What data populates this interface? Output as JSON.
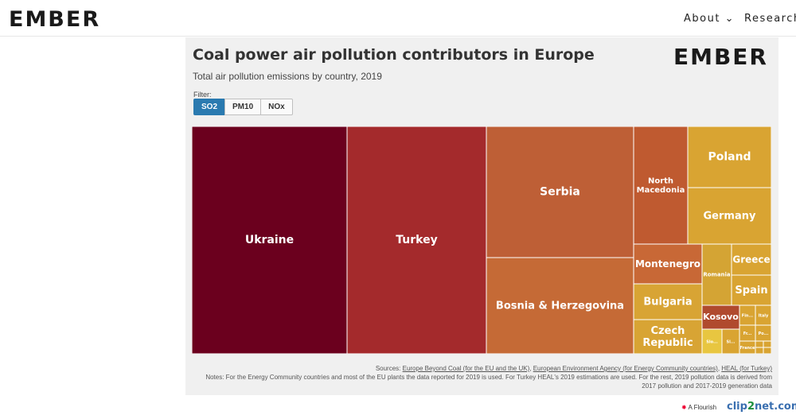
{
  "header": {
    "logo": "EMBER",
    "nav": [
      {
        "label": "About ⌄"
      },
      {
        "label": "Research"
      }
    ]
  },
  "card": {
    "logo": "EMBER",
    "filter_label": "Filter:",
    "filters": [
      "SO2",
      "PM10",
      "NOx"
    ],
    "active_filter": "SO2"
  },
  "chart_data": {
    "type": "treemap",
    "title": "Coal power air pollution contributors in Europe",
    "subtitle": "Total air pollution emissions by country, 2019",
    "nodes": [
      {
        "label": "Ukraine",
        "value": 195,
        "color": "#6b001e"
      },
      {
        "label": "Turkey",
        "value": 175,
        "color": "#a42a2c"
      },
      {
        "label": "Serbia",
        "value": 103,
        "color": "#be5f36"
      },
      {
        "label": "Bosnia & Herzegovina",
        "value": 83,
        "color": "#c56a36"
      },
      {
        "label": "North Macedonia",
        "value": 29,
        "color": "#bf5a30"
      },
      {
        "label": "Poland",
        "value": 28,
        "color": "#d9a432"
      },
      {
        "label": "Germany",
        "value": 26,
        "color": "#d9a432"
      },
      {
        "label": "Montenegro",
        "value": 12,
        "color": "#c86836"
      },
      {
        "label": "Romania",
        "value": 15,
        "color": "#d4a434"
      },
      {
        "label": "Greece",
        "value": 8,
        "color": "#d9a432"
      },
      {
        "label": "Spain",
        "value": 7.5,
        "color": "#d9a432"
      },
      {
        "label": "Bulgaria",
        "value": 13,
        "color": "#d8a434"
      },
      {
        "label": "Czech Republic",
        "value": 13,
        "color": "#d8a434"
      },
      {
        "label": "Kosovo",
        "value": 5,
        "color": "#b04a2e"
      },
      {
        "label": "Slo...",
        "value": 2.5,
        "color": "#e8c640"
      },
      {
        "label": "Sl...",
        "value": 2,
        "color": "#d9a432"
      },
      {
        "label": "Fin...",
        "value": 1.2,
        "color": "#d9a432"
      },
      {
        "label": "Italy",
        "value": 1.2,
        "color": "#d9a432"
      },
      {
        "label": "Fr...",
        "value": 1,
        "color": "#d9a432"
      },
      {
        "label": "Po...",
        "value": 1,
        "color": "#d9a432"
      },
      {
        "label": "France",
        "value": 0.8,
        "color": "#d9a432"
      },
      {
        "label": "",
        "value": 0.3,
        "color": "#d9a432"
      },
      {
        "label": "",
        "value": 0.3,
        "color": "#d9a432"
      },
      {
        "label": "",
        "value": 0.3,
        "color": "#d9a432"
      },
      {
        "label": "",
        "value": 0.3,
        "color": "#d9a432"
      }
    ]
  },
  "sources": {
    "prefix": "Sources: ",
    "links": [
      "Europe Beyond Coal (for the EU and the UK)",
      "European Environment Agency (for Energy Community countries)",
      "HEAL (for Turkey)"
    ]
  },
  "notes": "Notes: For the Energy Community countries and most of the EU plants the data reported for 2019 is used. For Turkey HEAL's 2019 estimations are used. For the rest, 2019 pollution data is derived from 2017 pollution and 2017-2019 generation data",
  "footer": {
    "flourish": "A Flourish",
    "clip_a": "clip",
    "clip_b": "2",
    "clip_c": "net.com"
  }
}
